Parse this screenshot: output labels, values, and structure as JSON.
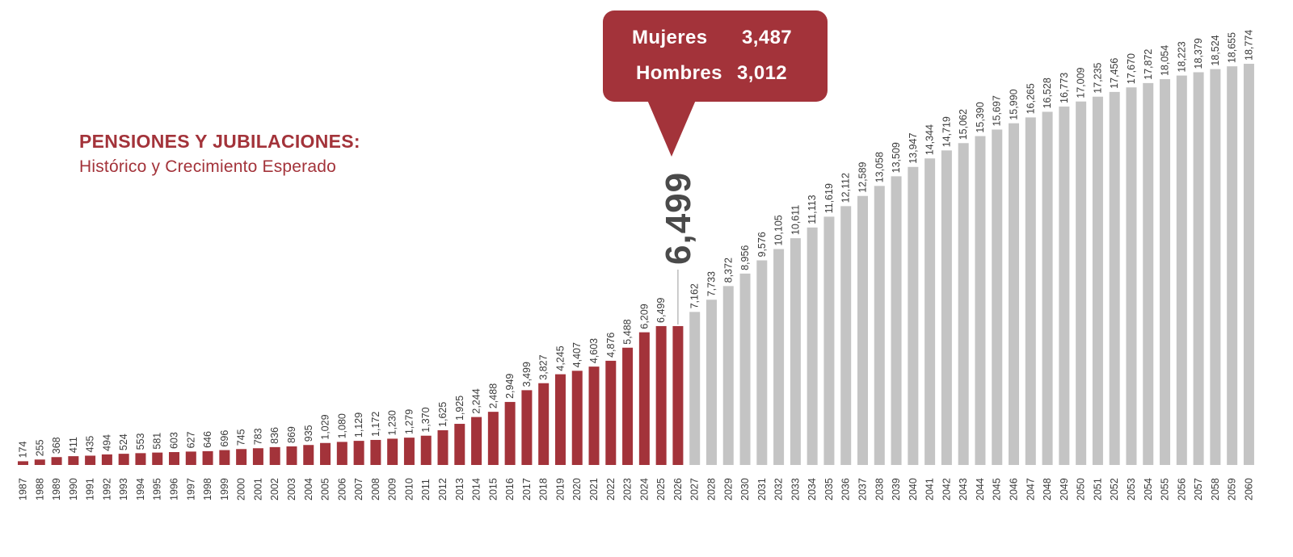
{
  "title": "PENSIONES Y JUBILACIONES:",
  "subtitle": "Histórico y Crecimiento Esperado",
  "highlight": {
    "year": "2026",
    "value_label": "6,499",
    "rows": [
      {
        "label": "Mujeres",
        "value": "3,487"
      },
      {
        "label": "Hombres",
        "value": "3,012"
      }
    ]
  },
  "colors": {
    "historical": "#a3333a",
    "projected": "#c4c4c4",
    "label_text": "#3a3a3a",
    "highlight_text": "#4a4a4a"
  },
  "chart_data": {
    "type": "bar",
    "title": "PENSIONES Y JUBILACIONES:",
    "subtitle": "Histórico y Crecimiento Esperado",
    "xlabel": "",
    "ylabel": "",
    "ylim": [
      0,
      18774
    ],
    "grid": false,
    "series": [
      {
        "years": [
          "1987",
          "1988",
          "1989",
          "1990",
          "1991",
          "1992",
          "1993",
          "1994",
          "1995",
          "1996",
          "1997",
          "1998",
          "1999",
          "2000",
          "2001",
          "2002",
          "2003",
          "2004",
          "2005",
          "2006",
          "2007",
          "2008",
          "2009",
          "2010",
          "2011",
          "2012",
          "2013",
          "2014",
          "2015",
          "2016",
          "2017",
          "2018",
          "2019",
          "2020",
          "2021",
          "2022",
          "2023",
          "2024",
          "2025",
          "2026"
        ],
        "values": [
          174,
          255,
          368,
          411,
          435,
          494,
          524,
          553,
          581,
          603,
          627,
          646,
          696,
          745,
          783,
          836,
          869,
          935,
          1029,
          1080,
          1129,
          1172,
          1230,
          1279,
          1370,
          1625,
          1925,
          2244,
          2488,
          2949,
          3499,
          3827,
          4245,
          4407,
          4603,
          4876,
          5488,
          6209,
          6499,
          6499
        ],
        "labels": [
          "174",
          "255",
          "368",
          "411",
          "435",
          "494",
          "524",
          "553",
          "581",
          "603",
          "627",
          "646",
          "696",
          "745",
          "783",
          "836",
          "869",
          "935",
          "1,029",
          "1,080",
          "1,129",
          "1,172",
          "1,230",
          "1,279",
          "1,370",
          "1,625",
          "1,925",
          "2,244",
          "2,488",
          "2,949",
          "3,499",
          "3,827",
          "4,245",
          "4,407",
          "4,603",
          "4,876",
          "5,488",
          "6,209",
          "6,499",
          ""
        ]
      },
      {
        "years": [
          "2027",
          "2028",
          "2029",
          "2030",
          "2031",
          "2032",
          "2033",
          "2034",
          "2035",
          "2036",
          "2037",
          "2038",
          "2039",
          "2040",
          "2041",
          "2042",
          "2043",
          "2044",
          "2045",
          "2046",
          "2047",
          "2048",
          "2049",
          "2050",
          "2051",
          "2052",
          "2053",
          "2054",
          "2055",
          "2056",
          "2057",
          "2058",
          "2059",
          "2060"
        ],
        "values": [
          7162,
          7733,
          8372,
          8956,
          9576,
          10105,
          10611,
          11113,
          11619,
          12112,
          12589,
          13058,
          13509,
          13947,
          14344,
          14719,
          15062,
          15390,
          15697,
          15990,
          16265,
          16528,
          16773,
          17009,
          17235,
          17456,
          17670,
          17872,
          18054,
          18223,
          18379,
          18524,
          18655,
          18774
        ],
        "labels": [
          "7,162",
          "7,733",
          "8,372",
          "8,956",
          "9,576",
          "10,105",
          "10,611",
          "11,113",
          "11,619",
          "12,112",
          "12,589",
          "13,058",
          "13,509",
          "13,947",
          "14,344",
          "14,719",
          "15,062",
          "15,390",
          "15,697",
          "15,990",
          "16,265",
          "16,528",
          "16,773",
          "17,009",
          "17,235",
          "17,456",
          "17,670",
          "17,872",
          "18,054",
          "18,223",
          "18,379",
          "18,524",
          "18,655",
          "18,774"
        ]
      }
    ]
  }
}
